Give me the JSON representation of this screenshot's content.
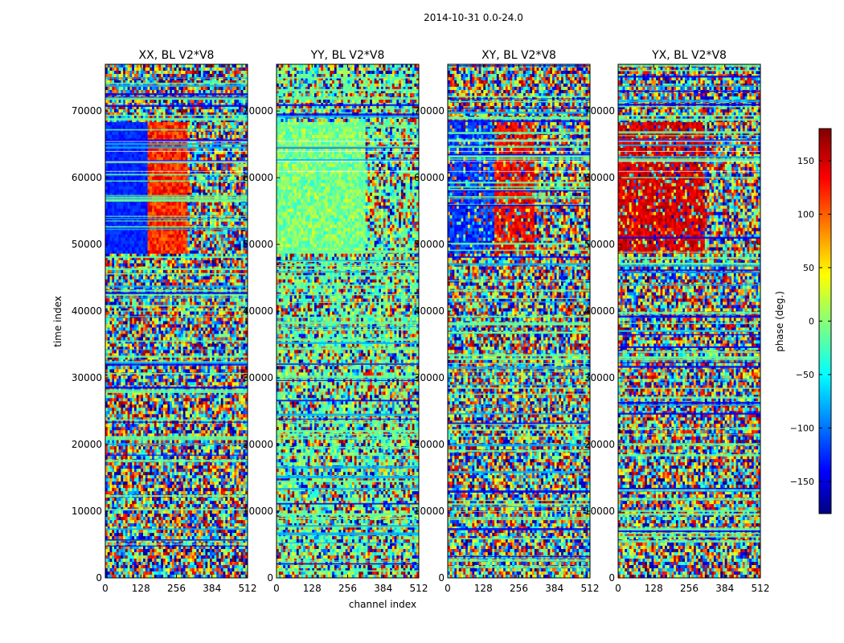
{
  "chart_data": {
    "type": "heatmap",
    "title": "2014-10-31 0.0-24.0",
    "xlabel": "channel index",
    "ylabel": "time index",
    "xlim": [
      0,
      512
    ],
    "ylim": [
      0,
      77000
    ],
    "x_ticks": [
      "0",
      "128",
      "256",
      "384",
      "512"
    ],
    "x_tick_values": [
      0,
      128,
      256,
      384,
      512
    ],
    "y_ticks": [
      "0",
      "10000",
      "20000",
      "30000",
      "40000",
      "50000",
      "60000",
      "70000"
    ],
    "y_tick_values": [
      0,
      10000,
      20000,
      30000,
      40000,
      50000,
      60000,
      70000
    ],
    "panels": [
      {
        "title": "XX, BL V2*V8",
        "pol": "XX"
      },
      {
        "title": "YY, BL V2*V8",
        "pol": "YY"
      },
      {
        "title": "XY, BL V2*V8",
        "pol": "XY"
      },
      {
        "title": "YX, BL V2*V8",
        "pol": "YX"
      }
    ],
    "colorbar": {
      "label": "phase (deg.)",
      "range": [
        -180,
        180
      ],
      "ticks": [
        "150",
        "100",
        "50",
        "0",
        "−50",
        "−100",
        "−150"
      ],
      "tick_values": [
        150,
        100,
        50,
        0,
        -50,
        -100,
        -150
      ],
      "colormap": "jet",
      "colormap_stops": [
        "#000080",
        "#0000ff",
        "#00ffff",
        "#ffff00",
        "#ff0000",
        "#800000"
      ]
    }
  }
}
